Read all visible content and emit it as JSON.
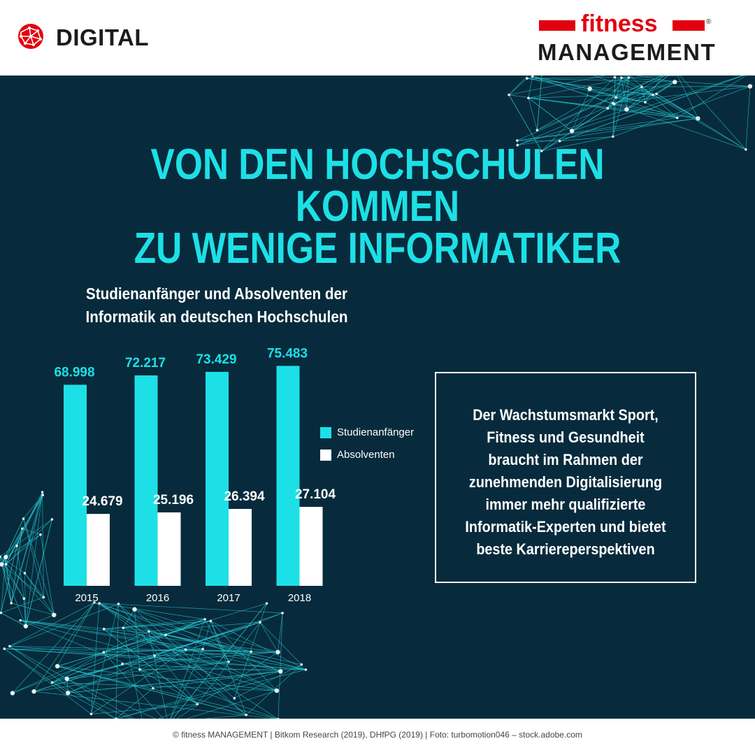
{
  "header": {
    "section_label": "DIGITAL",
    "brand_top": "fitness",
    "brand_bottom": "MANAGEMENT",
    "brand_mark": "®",
    "brand_red": "#e3000f"
  },
  "headline": {
    "line1": "VON DEN HOCHSCHULEN KOMMEN",
    "line2": "ZU WENIGE INFORMATIKER",
    "color": "#1de0e6"
  },
  "chart_data": {
    "type": "bar",
    "title_line1": "Studienanfänger und Absolventen der",
    "title_line2": "Informatik an deutschen Hochschulen",
    "categories": [
      "2015",
      "2016",
      "2017",
      "2018"
    ],
    "series": [
      {
        "name": "Studienanfänger",
        "values": [
          68998,
          72217,
          73429,
          75483
        ],
        "labels": [
          "68.998",
          "72.217",
          "73.429",
          "75.483"
        ],
        "color": "#1de0e6"
      },
      {
        "name": "Absolventen",
        "values": [
          24679,
          25196,
          26394,
          27104
        ],
        "labels": [
          "24.679",
          "25.196",
          "26.394",
          "27.104"
        ],
        "color": "#ffffff"
      }
    ],
    "ylim": [
      0,
      80000
    ],
    "grid": false,
    "legend_position": "right"
  },
  "callout": {
    "lines": [
      "Der Wachstumsmarkt Sport,",
      "Fitness und Gesundheit",
      "braucht im Rahmen der",
      "zunehmenden Digitalisierung",
      "immer mehr qualifizierte",
      "Informatik-Experten und bietet",
      "beste Karriereperspektiven"
    ]
  },
  "footer": {
    "credits": "© fitness MANAGEMENT  |  Bitkom Research (2019), DHfPG (2019)  |  Foto: turbomotion046 – stock.adobe.com"
  },
  "colors": {
    "panel_bg": "#072b3c",
    "network": "#27c6d0"
  }
}
